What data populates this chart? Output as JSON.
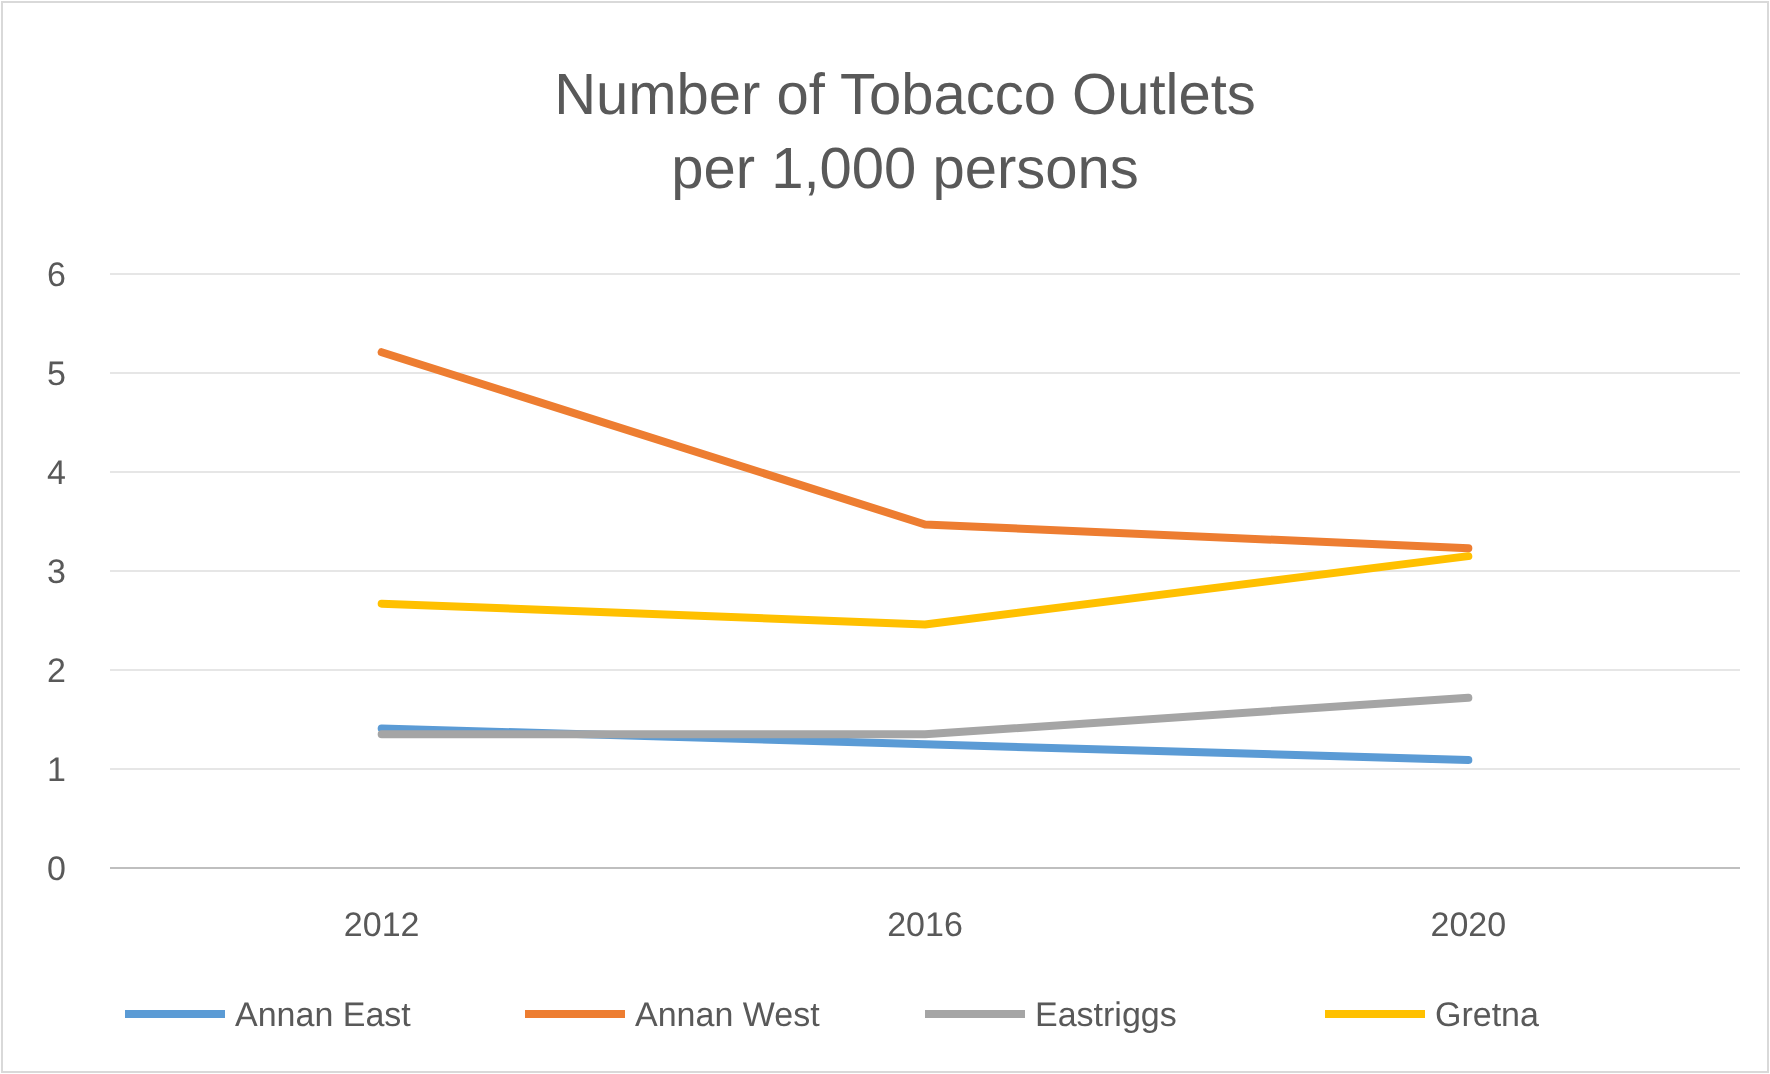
{
  "chart_data": {
    "type": "line",
    "title": "Number of Tobacco Outlets\nper 1,000 persons",
    "categories": [
      "2012",
      "2016",
      "2020"
    ],
    "series": [
      {
        "name": "Annan East",
        "color": "#5b9bd5",
        "values": [
          1.41,
          1.25,
          1.09
        ]
      },
      {
        "name": "Annan West",
        "color": "#ed7d31",
        "values": [
          5.21,
          3.47,
          3.23
        ]
      },
      {
        "name": "Eastriggs",
        "color": "#a5a5a5",
        "values": [
          1.35,
          1.35,
          1.72
        ]
      },
      {
        "name": "Gretna",
        "color": "#ffc000",
        "values": [
          2.67,
          2.46,
          3.15
        ]
      }
    ],
    "ylim": [
      0,
      6
    ],
    "yticks": [
      0,
      1,
      2,
      3,
      4,
      5,
      6
    ],
    "grid": "y",
    "legend": "bottom",
    "marker": "none",
    "line_style": "solid"
  }
}
